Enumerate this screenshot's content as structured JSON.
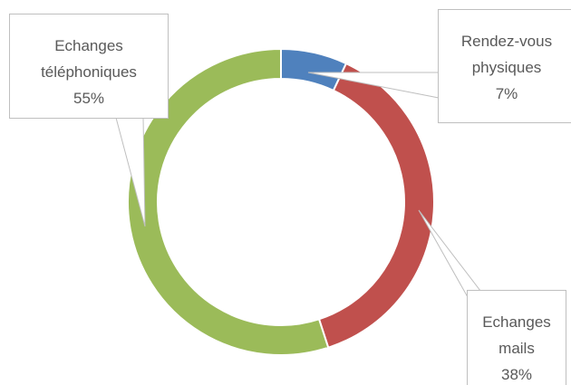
{
  "chart_data": {
    "type": "doughnut",
    "categories": [
      "Rendez-vous physiques",
      "Echanges mails",
      "Echanges téléphoniques"
    ],
    "values": [
      7,
      38,
      55
    ],
    "value_labels": [
      "7%",
      "38%",
      "55%"
    ],
    "colors": [
      "#4f81bd",
      "#c0504d",
      "#9bbb59"
    ]
  }
}
